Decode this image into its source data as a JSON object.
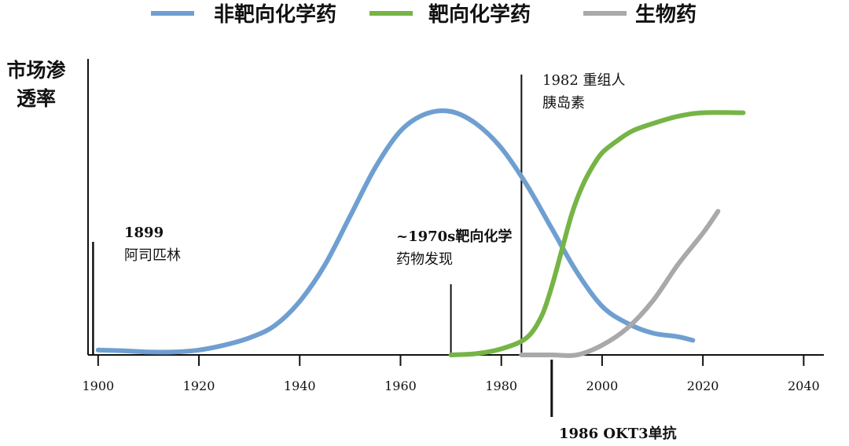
{
  "chart_data": {
    "type": "line",
    "ylabel_lines": [
      "市场渗",
      "透率"
    ],
    "xlim": [
      1898,
      2044
    ],
    "ylim": [
      0,
      1
    ],
    "x_ticks": [
      1900,
      1920,
      1940,
      1960,
      1980,
      2000,
      2020,
      2040
    ],
    "legend_position": "top",
    "series": [
      {
        "name": "非靶向化学药",
        "color": "#6f9fd0",
        "x": [
          1900,
          1905,
          1910,
          1915,
          1920,
          1925,
          1930,
          1935,
          1940,
          1945,
          1950,
          1955,
          1960,
          1965,
          1970,
          1975,
          1980,
          1985,
          1990,
          1995,
          2000,
          2005,
          2010,
          2015,
          2018
        ],
        "y": [
          0.02,
          0.017,
          0.012,
          0.012,
          0.02,
          0.04,
          0.07,
          0.12,
          0.22,
          0.37,
          0.57,
          0.77,
          0.92,
          0.99,
          1.0,
          0.95,
          0.85,
          0.7,
          0.52,
          0.34,
          0.2,
          0.13,
          0.09,
          0.075,
          0.06
        ]
      },
      {
        "name": "靶向化学药",
        "color": "#76b446",
        "x": [
          1970,
          1975,
          1980,
          1985,
          1988,
          1990,
          1992,
          1994,
          1996,
          1998,
          2000,
          2003,
          2006,
          2010,
          2015,
          2020,
          2028
        ],
        "y": [
          0.0,
          0.005,
          0.025,
          0.07,
          0.16,
          0.28,
          0.43,
          0.58,
          0.69,
          0.77,
          0.83,
          0.88,
          0.92,
          0.95,
          0.98,
          0.995,
          0.995
        ]
      },
      {
        "name": "生物药",
        "color": "#a9a9a9",
        "x": [
          1984,
          1990,
          1995,
          2000,
          2005,
          2010,
          2015,
          2020,
          2023
        ],
        "y": [
          0.0,
          0.0,
          0.0,
          0.04,
          0.11,
          0.22,
          0.37,
          0.5,
          0.59
        ]
      }
    ],
    "annotations": [
      {
        "year": 1899,
        "lines": [
          "1899",
          "阿司匹林"
        ]
      },
      {
        "year": 1970,
        "lines": [
          "~1970s靶向化学",
          "药物发现"
        ]
      },
      {
        "year": 1984,
        "lines": [
          "1982 重组人",
          "胰岛素"
        ]
      },
      {
        "year": 1990,
        "lines": [
          "1986 OKT3单抗"
        ]
      }
    ]
  }
}
